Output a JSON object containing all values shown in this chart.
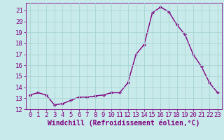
{
  "x": [
    0,
    1,
    2,
    3,
    4,
    5,
    6,
    7,
    8,
    9,
    10,
    11,
    12,
    13,
    14,
    15,
    16,
    17,
    18,
    19,
    20,
    21,
    22,
    23
  ],
  "y": [
    13.3,
    13.5,
    13.3,
    12.4,
    12.5,
    12.8,
    13.1,
    13.1,
    13.2,
    13.3,
    13.5,
    13.5,
    14.4,
    17.0,
    17.9,
    20.8,
    21.3,
    20.9,
    19.7,
    18.8,
    17.0,
    15.9,
    14.4,
    13.5
  ],
  "line_color": "#800080",
  "marker": "D",
  "marker_size": 2,
  "bg_color": "#c8eaea",
  "grid_color": "#a8d4d4",
  "xlabel": "Windchill (Refroidissement éolien,°C)",
  "xlim": [
    -0.5,
    23.5
  ],
  "ylim": [
    12,
    21.7
  ],
  "yticks": [
    12,
    13,
    14,
    15,
    16,
    17,
    18,
    19,
    20,
    21
  ],
  "xticks": [
    0,
    1,
    2,
    3,
    4,
    5,
    6,
    7,
    8,
    9,
    10,
    11,
    12,
    13,
    14,
    15,
    16,
    17,
    18,
    19,
    20,
    21,
    22,
    23
  ],
  "tick_label_fontsize": 6.5,
  "xlabel_fontsize": 7,
  "line_width": 1.0
}
